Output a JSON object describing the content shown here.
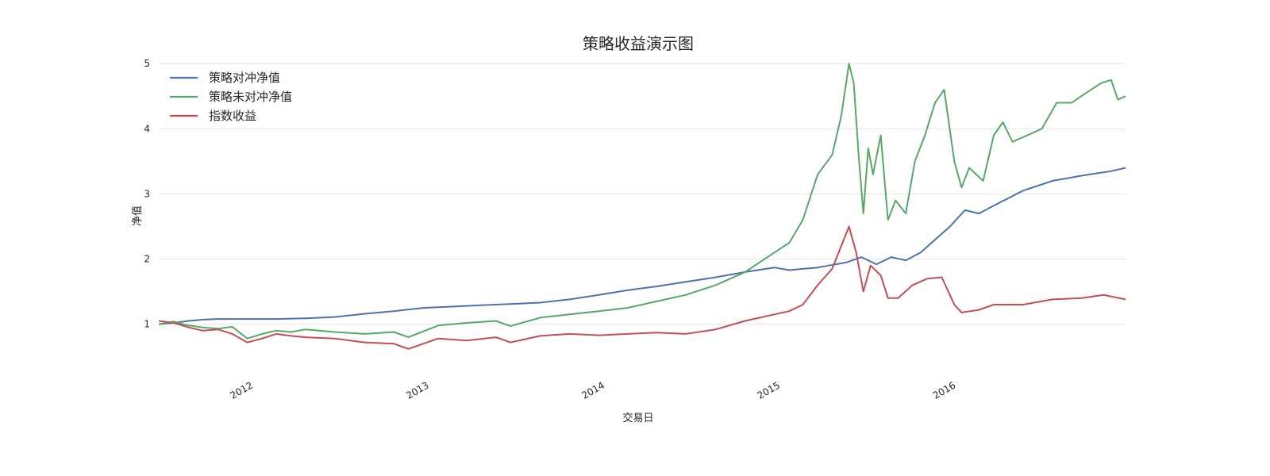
{
  "chart_data": {
    "type": "line",
    "title": "策略收益演示图",
    "xlabel": "交易日",
    "ylabel": "净值",
    "x_tick_labels": [
      "2012",
      "2013",
      "2014",
      "2015",
      "2016"
    ],
    "y_tick_labels": [
      "1",
      "2",
      "3",
      "4",
      "5"
    ],
    "x_range": [
      "2011-07-01",
      "2016-12-31"
    ],
    "ylim": [
      0.35,
      5.1
    ],
    "grid": "horizontal",
    "legend_position": "top-left",
    "series": [
      {
        "name": "策略对冲净值",
        "color": "#4c72b0",
        "points": [
          [
            "2011-07-01",
            1.0
          ],
          [
            "2011-08-01",
            1.02
          ],
          [
            "2011-09-01",
            1.05
          ],
          [
            "2011-10-01",
            1.07
          ],
          [
            "2011-11-01",
            1.08
          ],
          [
            "2012-01-01",
            1.08
          ],
          [
            "2012-03-01",
            1.08
          ],
          [
            "2012-05-01",
            1.09
          ],
          [
            "2012-07-01",
            1.11
          ],
          [
            "2012-09-01",
            1.16
          ],
          [
            "2012-11-01",
            1.2
          ],
          [
            "2013-01-01",
            1.25
          ],
          [
            "2013-03-01",
            1.27
          ],
          [
            "2013-05-01",
            1.29
          ],
          [
            "2013-07-01",
            1.31
          ],
          [
            "2013-09-01",
            1.33
          ],
          [
            "2013-11-01",
            1.38
          ],
          [
            "2014-01-01",
            1.45
          ],
          [
            "2014-03-01",
            1.52
          ],
          [
            "2014-05-01",
            1.58
          ],
          [
            "2014-07-01",
            1.65
          ],
          [
            "2014-09-01",
            1.72
          ],
          [
            "2014-11-01",
            1.8
          ],
          [
            "2015-01-01",
            1.87
          ],
          [
            "2015-02-01",
            1.83
          ],
          [
            "2015-04-01",
            1.87
          ],
          [
            "2015-06-01",
            1.95
          ],
          [
            "2015-07-01",
            2.03
          ],
          [
            "2015-08-01",
            1.92
          ],
          [
            "2015-09-01",
            2.03
          ],
          [
            "2015-10-01",
            1.98
          ],
          [
            "2015-11-01",
            2.1
          ],
          [
            "2016-01-01",
            2.5
          ],
          [
            "2016-02-01",
            2.75
          ],
          [
            "2016-03-01",
            2.7
          ],
          [
            "2016-04-01",
            2.82
          ],
          [
            "2016-06-01",
            3.05
          ],
          [
            "2016-08-01",
            3.2
          ],
          [
            "2016-10-01",
            3.28
          ],
          [
            "2016-12-01",
            3.35
          ],
          [
            "2016-12-31",
            3.4
          ]
        ]
      },
      {
        "name": "策略未对冲净值",
        "color": "#55a868",
        "points": [
          [
            "2011-07-01",
            1.0
          ],
          [
            "2011-08-01",
            1.04
          ],
          [
            "2011-09-01",
            0.98
          ],
          [
            "2011-10-01",
            0.95
          ],
          [
            "2011-11-01",
            0.93
          ],
          [
            "2011-12-01",
            0.96
          ],
          [
            "2012-01-01",
            0.78
          ],
          [
            "2012-02-01",
            0.85
          ],
          [
            "2012-03-01",
            0.9
          ],
          [
            "2012-04-01",
            0.88
          ],
          [
            "2012-05-01",
            0.92
          ],
          [
            "2012-07-01",
            0.88
          ],
          [
            "2012-09-01",
            0.85
          ],
          [
            "2012-11-01",
            0.88
          ],
          [
            "2012-12-01",
            0.8
          ],
          [
            "2013-02-01",
            0.98
          ],
          [
            "2013-04-01",
            1.02
          ],
          [
            "2013-06-01",
            1.05
          ],
          [
            "2013-07-01",
            0.97
          ],
          [
            "2013-09-01",
            1.1
          ],
          [
            "2013-11-01",
            1.15
          ],
          [
            "2014-01-01",
            1.2
          ],
          [
            "2014-03-01",
            1.25
          ],
          [
            "2014-05-01",
            1.35
          ],
          [
            "2014-07-01",
            1.45
          ],
          [
            "2014-09-01",
            1.6
          ],
          [
            "2014-11-01",
            1.8
          ],
          [
            "2015-01-01",
            2.1
          ],
          [
            "2015-02-01",
            2.25
          ],
          [
            "2015-03-01",
            2.6
          ],
          [
            "2015-04-01",
            3.3
          ],
          [
            "2015-05-01",
            3.6
          ],
          [
            "2015-05-20",
            4.2
          ],
          [
            "2015-06-05",
            5.0
          ],
          [
            "2015-06-15",
            4.7
          ],
          [
            "2015-06-25",
            3.6
          ],
          [
            "2015-07-05",
            2.7
          ],
          [
            "2015-07-15",
            3.7
          ],
          [
            "2015-07-25",
            3.3
          ],
          [
            "2015-08-10",
            3.9
          ],
          [
            "2015-08-25",
            2.6
          ],
          [
            "2015-09-10",
            2.9
          ],
          [
            "2015-10-01",
            2.7
          ],
          [
            "2015-10-20",
            3.5
          ],
          [
            "2015-11-10",
            3.9
          ],
          [
            "2015-12-01",
            4.4
          ],
          [
            "2015-12-20",
            4.6
          ],
          [
            "2016-01-10",
            3.5
          ],
          [
            "2016-01-25",
            3.1
          ],
          [
            "2016-02-10",
            3.4
          ],
          [
            "2016-03-10",
            3.2
          ],
          [
            "2016-04-01",
            3.9
          ],
          [
            "2016-04-20",
            4.1
          ],
          [
            "2016-05-10",
            3.8
          ],
          [
            "2016-06-10",
            3.9
          ],
          [
            "2016-07-10",
            4.0
          ],
          [
            "2016-08-10",
            4.4
          ],
          [
            "2016-09-10",
            4.4
          ],
          [
            "2016-10-10",
            4.55
          ],
          [
            "2016-11-10",
            4.7
          ],
          [
            "2016-12-01",
            4.75
          ],
          [
            "2016-12-15",
            4.45
          ],
          [
            "2016-12-31",
            4.5
          ]
        ]
      },
      {
        "name": "指数收益",
        "color": "#c44e52",
        "points": [
          [
            "2011-07-01",
            1.05
          ],
          [
            "2011-08-01",
            1.02
          ],
          [
            "2011-09-01",
            0.95
          ],
          [
            "2011-10-01",
            0.9
          ],
          [
            "2011-11-01",
            0.92
          ],
          [
            "2011-12-01",
            0.85
          ],
          [
            "2012-01-01",
            0.72
          ],
          [
            "2012-02-01",
            0.78
          ],
          [
            "2012-03-01",
            0.85
          ],
          [
            "2012-04-01",
            0.82
          ],
          [
            "2012-05-01",
            0.8
          ],
          [
            "2012-07-01",
            0.78
          ],
          [
            "2012-09-01",
            0.72
          ],
          [
            "2012-11-01",
            0.7
          ],
          [
            "2012-12-01",
            0.62
          ],
          [
            "2013-02-01",
            0.78
          ],
          [
            "2013-04-01",
            0.75
          ],
          [
            "2013-06-01",
            0.8
          ],
          [
            "2013-07-01",
            0.72
          ],
          [
            "2013-09-01",
            0.82
          ],
          [
            "2013-11-01",
            0.85
          ],
          [
            "2014-01-01",
            0.83
          ],
          [
            "2014-03-01",
            0.85
          ],
          [
            "2014-05-01",
            0.87
          ],
          [
            "2014-07-01",
            0.85
          ],
          [
            "2014-09-01",
            0.92
          ],
          [
            "2014-11-01",
            1.05
          ],
          [
            "2015-01-01",
            1.15
          ],
          [
            "2015-02-01",
            1.2
          ],
          [
            "2015-03-01",
            1.3
          ],
          [
            "2015-04-01",
            1.6
          ],
          [
            "2015-05-01",
            1.85
          ],
          [
            "2015-06-05",
            2.5
          ],
          [
            "2015-06-20",
            2.1
          ],
          [
            "2015-07-05",
            1.5
          ],
          [
            "2015-07-20",
            1.9
          ],
          [
            "2015-08-10",
            1.75
          ],
          [
            "2015-08-25",
            1.4
          ],
          [
            "2015-09-15",
            1.4
          ],
          [
            "2015-10-15",
            1.6
          ],
          [
            "2015-11-15",
            1.7
          ],
          [
            "2015-12-15",
            1.72
          ],
          [
            "2016-01-10",
            1.3
          ],
          [
            "2016-01-25",
            1.18
          ],
          [
            "2016-03-01",
            1.22
          ],
          [
            "2016-04-01",
            1.3
          ],
          [
            "2016-06-01",
            1.3
          ],
          [
            "2016-08-01",
            1.38
          ],
          [
            "2016-10-01",
            1.4
          ],
          [
            "2016-11-15",
            1.45
          ],
          [
            "2016-12-31",
            1.38
          ]
        ]
      }
    ]
  }
}
